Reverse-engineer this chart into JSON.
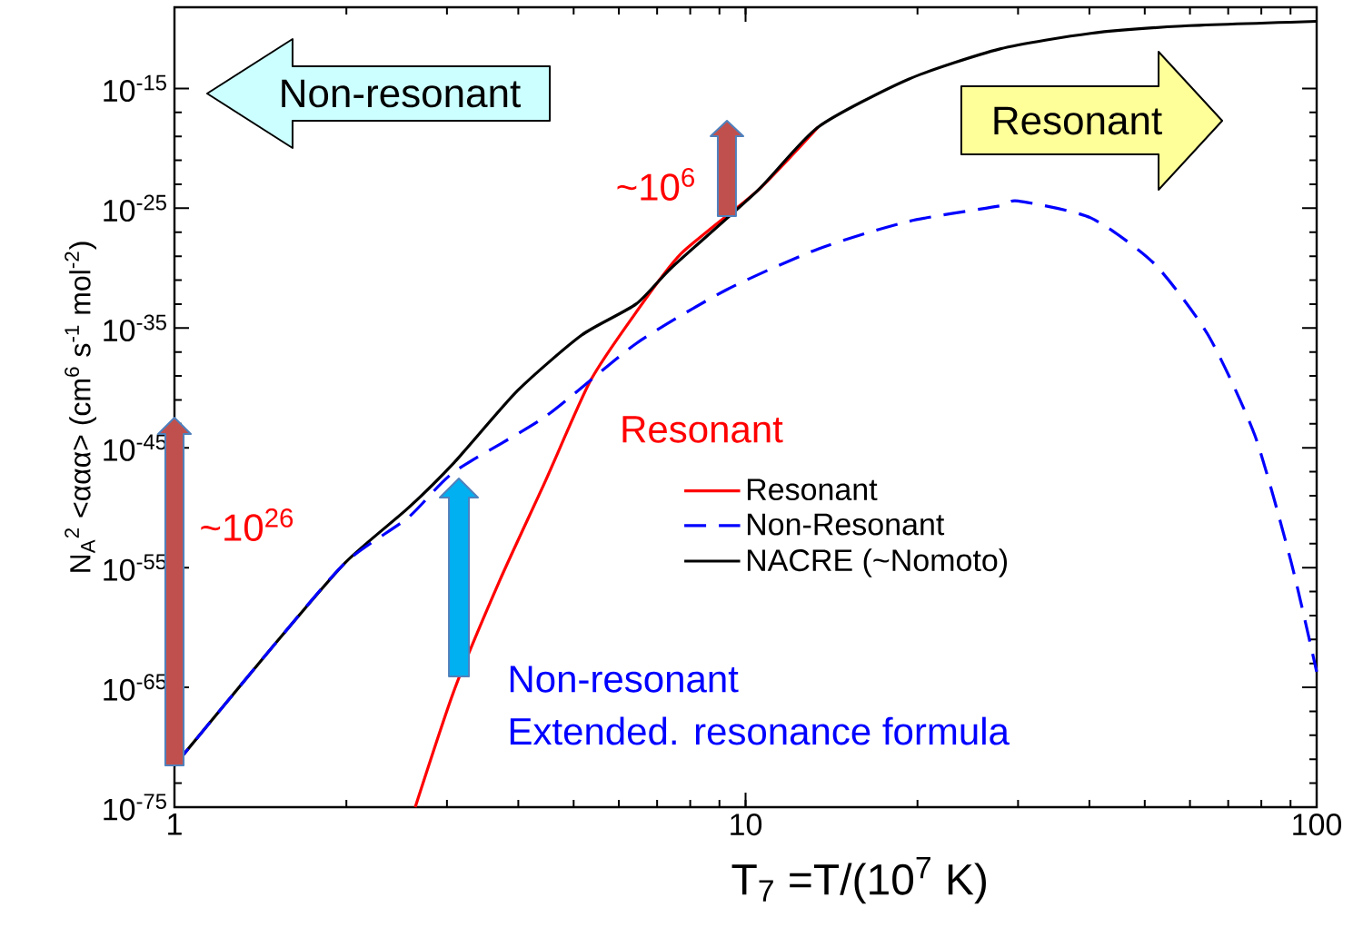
{
  "chart_data": {
    "type": "line",
    "xlabel": "T$_{7}$     =T/(10$^{7}$ K)",
    "ylabel": "N$_{A}$$^{2}$ <ααα> (cm$^{6}$ s$^{-1}$ mol$^{-2}$)",
    "log": "xy",
    "xlim": [
      1,
      100
    ],
    "ylim": [
      1e-75,
      6e-09
    ],
    "xticks": [
      1,
      10,
      100
    ],
    "yticks": [
      {
        "value": 1e-75,
        "label": "10$^{-75}$"
      },
      {
        "value": 1e-65,
        "label": "10$^{-65}$"
      },
      {
        "value": 1e-55,
        "label": "10$^{-55}$"
      },
      {
        "value": 1e-45,
        "label": "10$^{-45}$"
      },
      {
        "value": 1e-35,
        "label": "10$^{-35}$"
      },
      {
        "value": 1e-25,
        "label": "10$^{-25}$"
      },
      {
        "value": 1e-15,
        "label": "10$^{-15}$"
      }
    ],
    "legend": "center",
    "series": [
      {
        "name": "Resonant",
        "color": "#ff0000",
        "line_style": "solid",
        "x": [
          2.64,
          3.09,
          3.71,
          4.46,
          5.35,
          6.43,
          7.71,
          10.5,
          13.4
        ],
        "values": [
          1e-75,
          6e-66,
          8e-57,
          1.6e-48,
          4e-40,
          2e-34,
          1.6e-29,
          3e-24,
          6e-19
        ]
      },
      {
        "name": "Non-Resonant",
        "color": "#0000ff",
        "line_style": "dashed",
        "x": [
          1,
          1.486,
          1.99,
          2.57,
          3.09,
          4.46,
          6.43,
          9.27,
          13.4,
          19.3,
          27.9,
          30,
          40.2,
          51.9,
          64.6,
          78,
          90.3,
          100
        ],
        "values": [
          3e-72,
          2.5e-62,
          2.5e-55,
          1.6e-51,
          1e-47,
          4e-43,
          5e-37,
          1.6e-32,
          4e-29,
          8e-27,
          1.6e-25,
          4e-25,
          1.6e-26,
          2.5e-30,
          2.5e-36,
          1e-44,
          2.5e-55,
          2e-64
        ]
      },
      {
        "name": "NACRE (~Nomoto)",
        "color": "#000000",
        "line_style": "solid",
        "x": [
          1,
          1.486,
          1.99,
          2.57,
          3.09,
          3.99,
          5.16,
          6.43,
          7.45,
          10.5,
          13.4,
          19.3,
          27.9,
          40.2,
          58,
          100
        ],
        "values": [
          3e-72,
          2.5e-62,
          2.5e-55,
          1e-50,
          6e-47,
          6e-41,
          2.5e-36,
          1e-33,
          1.3e-30,
          3e-24,
          6e-19,
          6e-15,
          2e-12,
          4e-11,
          1.6e-10,
          4e-10
        ]
      }
    ],
    "annotations": [
      "Non-resonant",
      "Resonant",
      "~10$^{6}$",
      "~10$^{26}$",
      "Resonant",
      "Non-resonant",
      "Extended. resonance formula"
    ]
  }
}
